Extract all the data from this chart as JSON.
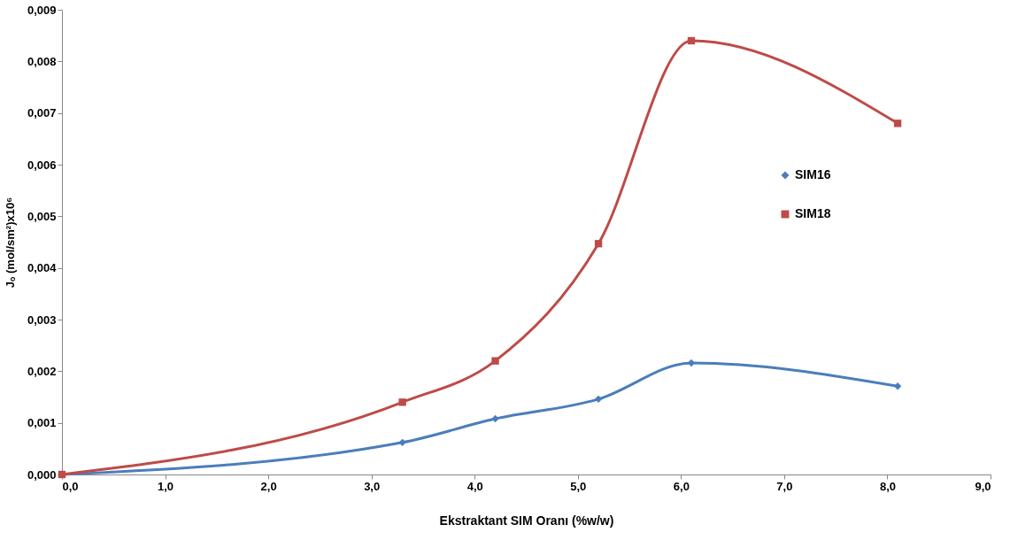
{
  "chart_data": {
    "type": "line",
    "xlabel": "Ekstraktant SIM Oranı (%w/w)",
    "ylabel": "Jₒ (mol/sm²)x10⁶",
    "x": [
      0,
      3.3,
      4.2,
      5.2,
      6.1,
      8.1
    ],
    "series": [
      {
        "name": "SIM16",
        "color": "#4a7ebb",
        "marker": "diamond",
        "values": [
          0,
          0.00062,
          0.00108,
          0.00146,
          0.00216,
          0.00171
        ]
      },
      {
        "name": "SIM18",
        "color": "#be4b48",
        "marker": "square",
        "values": [
          0,
          0.0014,
          0.0022,
          0.00447,
          0.0084,
          0.0068
        ]
      }
    ],
    "xlim": [
      0,
      9
    ],
    "xticks": [
      {
        "value": 0,
        "label": "0,0"
      },
      {
        "value": 1,
        "label": "1,0"
      },
      {
        "value": 2,
        "label": "2,0"
      },
      {
        "value": 3,
        "label": "3,0"
      },
      {
        "value": 4,
        "label": "4,0"
      },
      {
        "value": 5,
        "label": "5,0"
      },
      {
        "value": 6,
        "label": "6,0"
      },
      {
        "value": 7,
        "label": "7,0"
      },
      {
        "value": 8,
        "label": "8,0"
      },
      {
        "value": 9,
        "label": "9,0"
      }
    ],
    "ylim": [
      0,
      0.009
    ],
    "yticks": [
      {
        "value": 0,
        "label": "0,000"
      },
      {
        "value": 0.001,
        "label": "0,001"
      },
      {
        "value": 0.002,
        "label": "0,002"
      },
      {
        "value": 0.003,
        "label": "0,003"
      },
      {
        "value": 0.004,
        "label": "0,004"
      },
      {
        "value": 0.005,
        "label": "0,005"
      },
      {
        "value": 0.006,
        "label": "0,006"
      },
      {
        "value": 0.007,
        "label": "0,007"
      },
      {
        "value": 0.008,
        "label": "0,008"
      },
      {
        "value": 0.009,
        "label": "0,009"
      }
    ],
    "grid": false,
    "legend": "top right",
    "line_style": "solid"
  }
}
